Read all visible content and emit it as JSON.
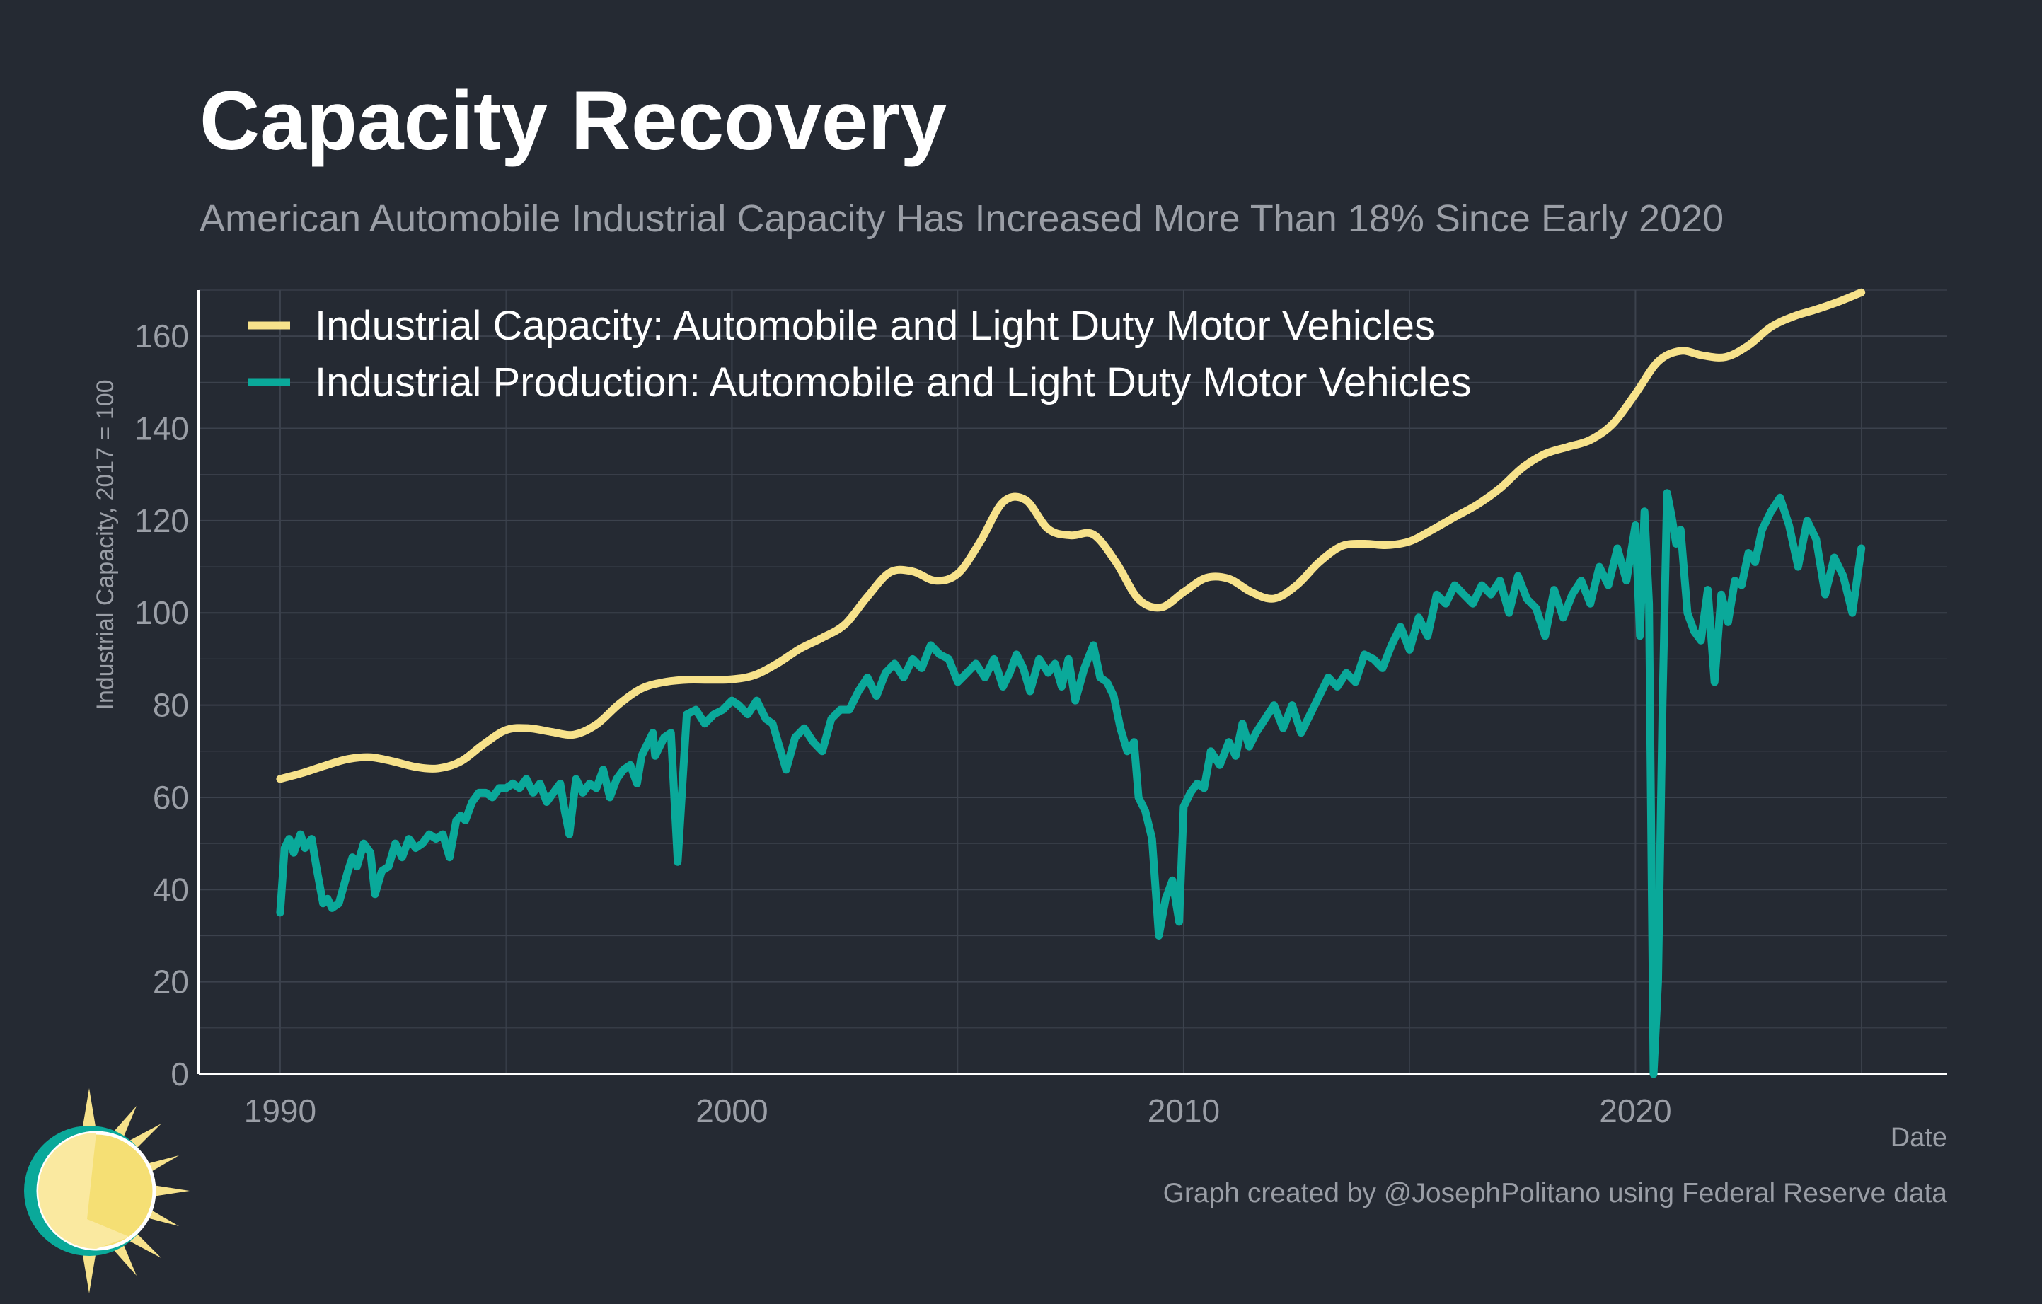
{
  "title": "Capacity Recovery",
  "subtitle": "American Automobile Industrial Capacity Has Increased More Than 18% Since Early 2020",
  "credit": "Graph created by @JosephPolitano using Federal Reserve data",
  "colors": {
    "background": "#252a33",
    "capacity": "#f7e28b",
    "production": "#0aa99a",
    "grid": "#3c424d",
    "axis_text": "#9a9ea6"
  },
  "chart_data": {
    "type": "line",
    "xlabel": "Date",
    "ylabel": "Industrial Capacity, 2017 = 100",
    "xlim": [
      1988.2,
      2026.9
    ],
    "ylim": [
      0,
      170
    ],
    "x_ticks": [
      1990,
      2000,
      2010,
      2020
    ],
    "x_tick_labels": [
      "1990",
      "2000",
      "2010",
      "2020"
    ],
    "y_ticks": [
      0,
      20,
      40,
      60,
      80,
      100,
      120,
      140,
      160
    ],
    "y_tick_labels": [
      "0",
      "20",
      "40",
      "60",
      "80",
      "100",
      "120",
      "140",
      "160"
    ],
    "grid": true,
    "legend_position": "top-left",
    "series": [
      {
        "name": "Industrial Capacity: Automobile and Light Duty Motor Vehicles",
        "color": "#f7e28b",
        "x": [
          1990.0,
          1990.5,
          1991.0,
          1991.5,
          1992.0,
          1992.5,
          1993.0,
          1993.5,
          1994.0,
          1994.5,
          1995.0,
          1995.5,
          1996.0,
          1996.5,
          1997.0,
          1997.5,
          1998.0,
          1998.5,
          1999.0,
          1999.5,
          2000.0,
          2000.5,
          2001.0,
          2001.5,
          2002.0,
          2002.5,
          2003.0,
          2003.5,
          2004.0,
          2004.5,
          2005.0,
          2005.5,
          2006.0,
          2006.5,
          2007.0,
          2007.5,
          2008.0,
          2008.5,
          2009.0,
          2009.5,
          2010.0,
          2010.5,
          2011.0,
          2011.5,
          2012.0,
          2012.5,
          2013.0,
          2013.5,
          2014.0,
          2014.5,
          2015.0,
          2015.5,
          2016.0,
          2016.5,
          2017.0,
          2017.5,
          2018.0,
          2018.5,
          2019.0,
          2019.5,
          2020.0,
          2020.5,
          2021.0,
          2021.5,
          2022.0,
          2022.5,
          2023.0,
          2023.5,
          2024.0,
          2024.5,
          2025.0
        ],
        "values": [
          64,
          65.3,
          66.9,
          68.3,
          68.7,
          67.8,
          66.6,
          66.3,
          67.8,
          71.5,
          74.6,
          75.0,
          74.2,
          73.6,
          75.8,
          80.2,
          83.6,
          85.0,
          85.5,
          85.5,
          85.6,
          86.5,
          89.0,
          92.2,
          94.6,
          97.5,
          103.5,
          108.8,
          109.0,
          107.0,
          108.5,
          115.5,
          124.0,
          124.5,
          118.2,
          116.8,
          117.0,
          111.0,
          103.0,
          101.2,
          104.5,
          107.6,
          107.4,
          104.5,
          103.1,
          106.0,
          111.0,
          114.5,
          115.0,
          114.7,
          115.5,
          118.0,
          120.8,
          123.5,
          127.0,
          131.5,
          134.5,
          136.0,
          137.5,
          141.0,
          147.5,
          154.5,
          156.8,
          155.8,
          155.5,
          158.0,
          162.0,
          164.3,
          165.8,
          167.5,
          169.5
        ]
      },
      {
        "name": "Industrial Production: Automobile and Light Duty Motor Vehicles",
        "color": "#0aa99a",
        "x": [
          1990.0,
          1990.1,
          1990.2,
          1990.3,
          1990.45,
          1990.55,
          1990.7,
          1990.8,
          1990.95,
          1991.05,
          1991.15,
          1991.3,
          1991.5,
          1991.6,
          1991.7,
          1991.85,
          1992.0,
          1992.1,
          1992.25,
          1992.4,
          1992.55,
          1992.7,
          1992.85,
          1993.0,
          1993.15,
          1993.3,
          1993.45,
          1993.6,
          1993.75,
          1993.9,
          1994.0,
          1994.1,
          1994.25,
          1994.4,
          1994.55,
          1994.7,
          1994.85,
          1995.0,
          1995.15,
          1995.3,
          1995.45,
          1995.6,
          1995.75,
          1995.9,
          1996.05,
          1996.2,
          1996.3,
          1996.4,
          1996.55,
          1996.7,
          1996.85,
          1997.0,
          1997.15,
          1997.3,
          1997.45,
          1997.6,
          1997.75,
          1997.9,
          1998.0,
          1998.15,
          1998.25,
          1998.3,
          1998.4,
          1998.5,
          1998.65,
          1998.8,
          1999.0,
          1999.2,
          1999.4,
          1999.6,
          1999.8,
          2000.0,
          2000.15,
          2000.35,
          2000.55,
          2000.75,
          2000.9,
          2001.05,
          2001.2,
          2001.4,
          2001.6,
          2001.8,
          2002.0,
          2002.2,
          2002.4,
          2002.6,
          2002.8,
          2003.0,
          2003.2,
          2003.4,
          2003.6,
          2003.8,
          2004.0,
          2004.2,
          2004.4,
          2004.6,
          2004.8,
          2005.0,
          2005.2,
          2005.4,
          2005.6,
          2005.8,
          2006.0,
          2006.15,
          2006.3,
          2006.45,
          2006.6,
          2006.8,
          2007.0,
          2007.15,
          2007.3,
          2007.45,
          2007.6,
          2007.8,
          2008.0,
          2008.15,
          2008.3,
          2008.45,
          2008.6,
          2008.75,
          2008.9,
          2009.0,
          2009.15,
          2009.3,
          2009.45,
          2009.6,
          2009.75,
          2009.9,
          2010.0,
          2010.15,
          2010.3,
          2010.45,
          2010.6,
          2010.8,
          2011.0,
          2011.15,
          2011.3,
          2011.45,
          2011.6,
          2011.8,
          2012.0,
          2012.2,
          2012.4,
          2012.6,
          2012.8,
          2013.0,
          2013.2,
          2013.4,
          2013.6,
          2013.8,
          2014.0,
          2014.2,
          2014.4,
          2014.6,
          2014.8,
          2015.0,
          2015.2,
          2015.4,
          2015.6,
          2015.8,
          2016.0,
          2016.2,
          2016.4,
          2016.6,
          2016.8,
          2017.0,
          2017.2,
          2017.4,
          2017.6,
          2017.8,
          2018.0,
          2018.2,
          2018.4,
          2018.6,
          2018.8,
          2019.0,
          2019.2,
          2019.4,
          2019.6,
          2019.8,
          2020.0,
          2020.1,
          2020.2,
          2020.3,
          2020.4,
          2020.5,
          2020.6,
          2020.7,
          2020.8,
          2020.9,
          2021.0,
          2021.15,
          2021.3,
          2021.45,
          2021.6,
          2021.75,
          2021.9,
          2022.05,
          2022.2,
          2022.35,
          2022.5,
          2022.65,
          2022.8,
          2023.0,
          2023.2,
          2023.4,
          2023.6,
          2023.8,
          2024.0,
          2024.2,
          2024.4,
          2024.6,
          2024.8,
          2025.0
        ],
        "values": [
          35,
          49,
          51,
          48,
          52,
          49,
          51,
          45,
          37,
          38,
          36,
          37,
          44,
          47,
          45,
          50,
          48,
          39,
          44,
          45,
          50,
          47,
          51,
          49,
          50,
          52,
          51,
          52,
          47,
          55,
          56,
          55,
          59,
          61,
          61,
          60,
          62,
          62,
          63,
          62,
          64,
          61,
          63,
          59,
          61,
          63,
          57,
          52,
          64,
          61,
          63,
          62,
          66,
          60,
          64,
          66,
          67,
          63,
          69,
          72,
          74,
          69,
          71,
          73,
          74,
          46,
          78,
          79,
          76,
          78,
          79,
          81,
          80,
          78,
          81,
          77,
          76,
          71,
          66,
          73,
          75,
          72,
          70,
          77,
          79,
          79,
          83,
          86,
          82,
          87,
          89,
          86,
          90,
          88,
          93,
          91,
          90,
          85,
          87,
          89,
          86,
          90,
          84,
          87,
          91,
          88,
          83,
          90,
          87,
          89,
          84,
          90,
          81,
          88,
          93,
          86,
          85,
          82,
          75,
          70,
          72,
          60,
          57,
          51,
          30,
          38,
          42,
          33,
          58,
          61,
          63,
          62,
          70,
          67,
          72,
          69,
          76,
          71,
          74,
          77,
          80,
          75,
          80,
          74,
          78,
          82,
          86,
          84,
          87,
          85,
          91,
          90,
          88,
          93,
          97,
          92,
          99,
          95,
          104,
          102,
          106,
          104,
          102,
          106,
          104,
          107,
          100,
          108,
          103,
          101,
          95,
          105,
          99,
          104,
          107,
          102,
          110,
          106,
          114,
          107,
          119,
          95,
          122,
          102,
          0,
          20,
          80,
          126,
          121,
          115,
          118,
          100,
          96,
          94,
          105,
          85,
          104,
          98,
          107,
          106,
          113,
          111,
          118,
          122,
          125,
          119,
          110,
          120,
          116,
          104,
          112,
          108,
          100,
          114
        ]
      }
    ]
  }
}
